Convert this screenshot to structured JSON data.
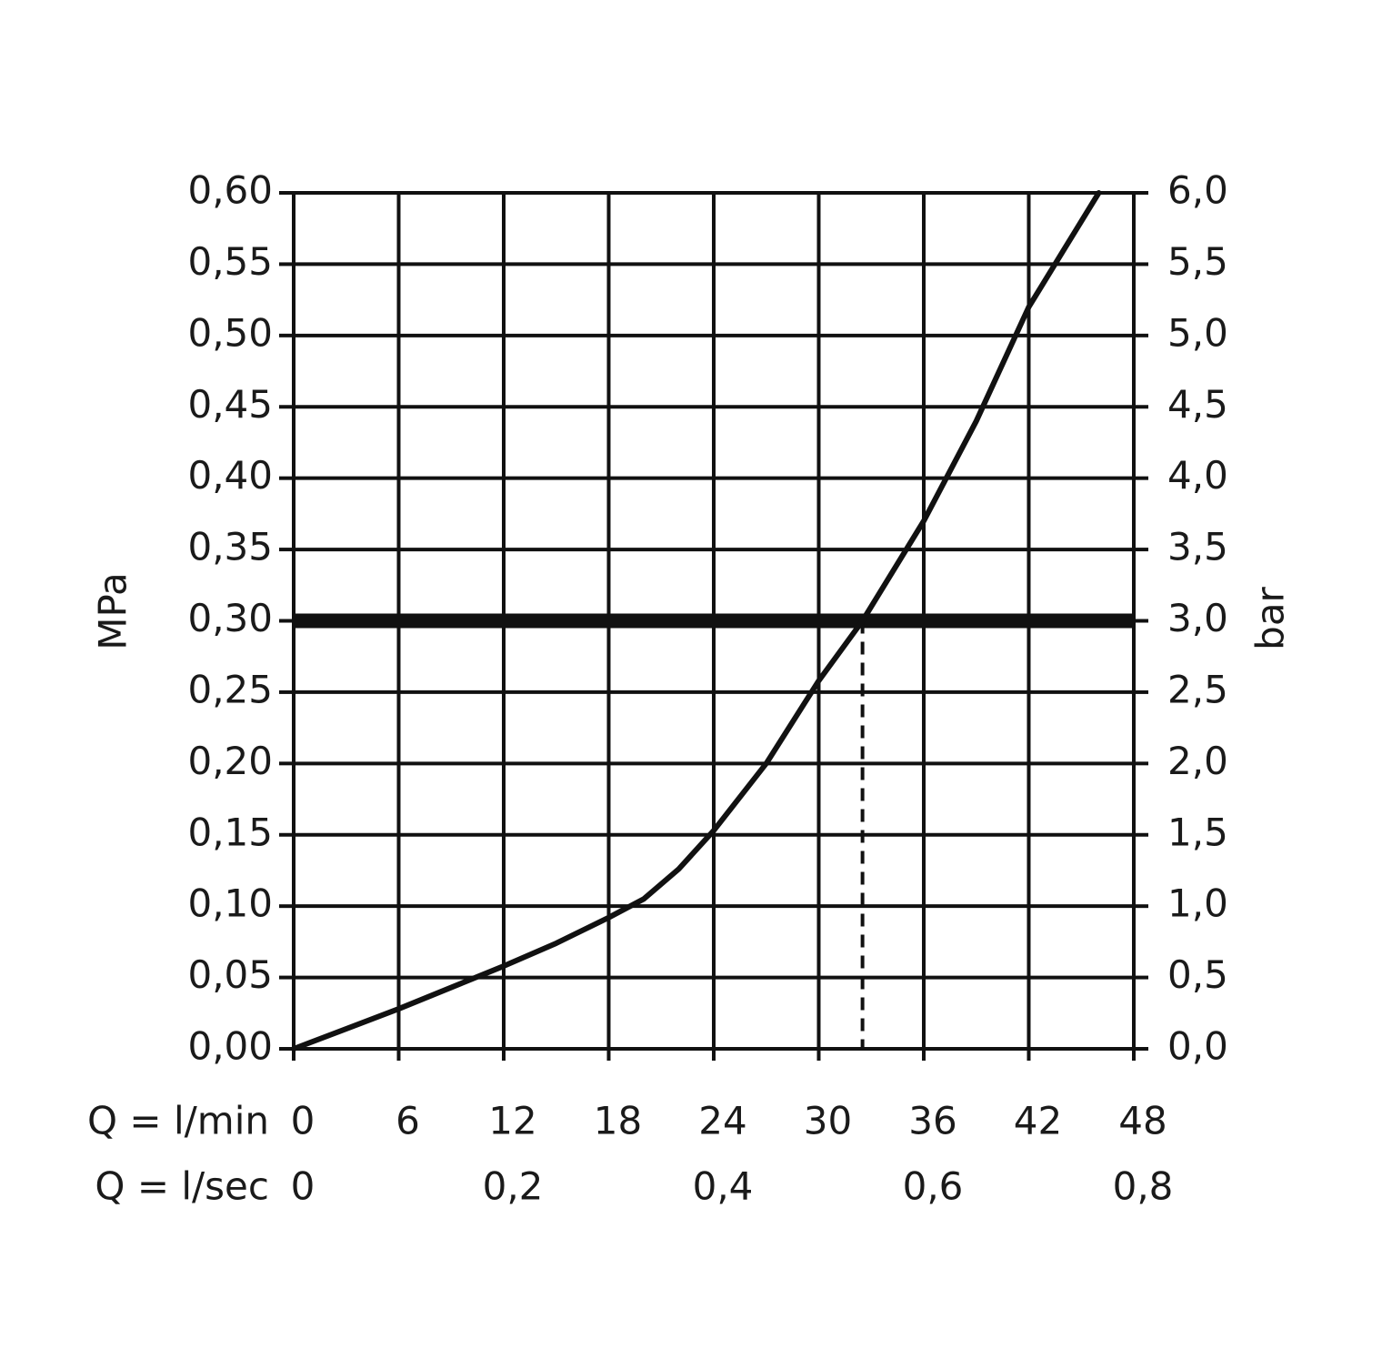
{
  "chart_data": {
    "type": "line",
    "x_label": "Q = l/min",
    "x2_label": "Q = l/sec",
    "y_label": "MPa",
    "y2_label": "bar",
    "x": [
      0,
      3,
      6,
      9,
      12,
      15,
      18,
      20,
      22,
      24,
      27,
      30,
      32.5,
      36,
      39,
      42,
      44,
      46
    ],
    "series": [
      {
        "color": "#111111",
        "values": [
          0,
          0.014,
          0.028,
          0.043,
          0.058,
          0.074,
          0.092,
          0.105,
          0.126,
          0.153,
          0.2,
          0.258,
          0.3,
          0.37,
          0.44,
          0.52,
          0.56,
          0.6
        ]
      }
    ],
    "xlim": [
      0,
      48
    ],
    "xticks": [
      0,
      6,
      12,
      18,
      24,
      30,
      36,
      42,
      48
    ],
    "x2lim": [
      0,
      0.8
    ],
    "x2ticks": [
      0,
      {
        "value": 0.2,
        "label": "0,2"
      },
      {
        "value": 0.4,
        "label": "0,4"
      },
      {
        "value": 0.6,
        "label": "0,6"
      },
      {
        "value": 0.8,
        "label": "0,8"
      }
    ],
    "ylim": [
      0,
      0.6
    ],
    "yticks": [
      {
        "value": 0,
        "label": "0,00"
      },
      {
        "value": 0.05,
        "label": "0,05"
      },
      {
        "value": 0.1,
        "label": "0,10"
      },
      {
        "value": 0.15,
        "label": "0,15"
      },
      {
        "value": 0.2,
        "label": "0,20"
      },
      {
        "value": 0.25,
        "label": "0,25"
      },
      {
        "value": 0.3,
        "label": "0,30"
      },
      {
        "value": 0.35,
        "label": "0,35"
      },
      {
        "value": 0.4,
        "label": "0,40"
      },
      {
        "value": 0.45,
        "label": "0,45"
      },
      {
        "value": 0.5,
        "label": "0,50"
      },
      {
        "value": 0.55,
        "label": "0,55"
      },
      {
        "value": 0.6,
        "label": "0,60"
      }
    ],
    "y2lim": [
      0,
      6
    ],
    "y2ticks": [
      {
        "value": 0,
        "label": "0,0"
      },
      {
        "value": 0.5,
        "label": "0,5"
      },
      {
        "value": 1,
        "label": "1,0"
      },
      {
        "value": 1.5,
        "label": "1,5"
      },
      {
        "value": 2,
        "label": "2,0"
      },
      {
        "value": 2.5,
        "label": "2,5"
      },
      {
        "value": 3,
        "label": "3,0"
      },
      {
        "value": 3.5,
        "label": "3,5"
      },
      {
        "value": 4,
        "label": "4,0"
      },
      {
        "value": 4.5,
        "label": "4,5"
      },
      {
        "value": 5,
        "label": "5,0"
      },
      {
        "value": 5.5,
        "label": "5,5"
      },
      {
        "value": 6,
        "label": "6,0"
      }
    ],
    "reference_y": 0.3,
    "marker_x": 32.5,
    "grid": true
  }
}
